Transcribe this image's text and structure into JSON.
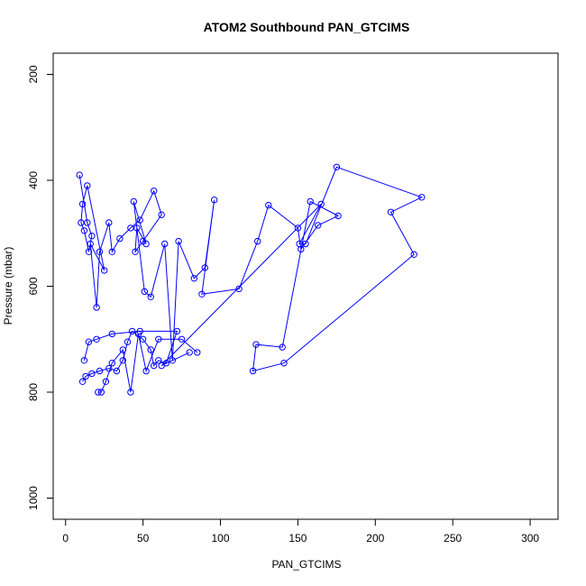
{
  "chart_data": {
    "type": "line",
    "title": "ATOM2 Southbound PAN_GTCIMS",
    "xlabel": "PAN_GTCIMS",
    "ylabel": "Pressure (mbar)",
    "xlim": [
      -8,
      318
    ],
    "ylim": [
      1040,
      160
    ],
    "y_reversed": true,
    "x_ticks": [
      0,
      50,
      100,
      150,
      200,
      250,
      300
    ],
    "y_ticks": [
      200,
      400,
      600,
      800,
      1000
    ],
    "grid": false,
    "legend": "none",
    "color": "#0000ff",
    "marker": "open-circle",
    "series": [
      {
        "x": [
          9,
          14,
          17,
          15,
          12,
          10,
          11,
          14,
          25,
          16,
          20,
          22,
          28,
          30,
          35,
          42,
          48,
          57,
          62,
          50,
          45,
          46,
          52,
          44,
          51,
          55,
          64,
          69,
          73,
          83,
          90,
          96,
          88,
          112,
          124,
          131,
          150,
          152,
          163,
          176,
          158,
          140,
          123,
          121,
          141,
          225,
          210,
          230,
          175,
          155,
          151,
          165,
          62,
          80
        ],
        "y": [
          390,
          480,
          505,
          535,
          495,
          480,
          445,
          410,
          570,
          520,
          640,
          535,
          480,
          535,
          510,
          490,
          475,
          420,
          465,
          515,
          535,
          490,
          520,
          440,
          610,
          620,
          520,
          740,
          515,
          585,
          565,
          437,
          615,
          605,
          515,
          447,
          490,
          530,
          485,
          467,
          440,
          715,
          710,
          760,
          745,
          540,
          460,
          432,
          375,
          520,
          520,
          445,
          750,
          725
        ]
      },
      {
        "x": [
          11,
          13,
          17,
          22,
          28,
          33,
          37,
          40,
          43,
          50,
          55,
          57,
          60,
          65,
          72,
          48,
          30,
          20,
          15,
          12
        ],
        "y": [
          780,
          770,
          765,
          760,
          755,
          760,
          740,
          705,
          685,
          700,
          720,
          750,
          740,
          745,
          685,
          685,
          690,
          700,
          705,
          740
        ]
      },
      {
        "x": [
          21,
          23,
          26,
          30,
          37,
          42,
          47,
          52,
          60,
          75,
          85
        ],
        "y": [
          800,
          800,
          780,
          745,
          720,
          800,
          690,
          760,
          700,
          700,
          725
        ]
      }
    ]
  }
}
